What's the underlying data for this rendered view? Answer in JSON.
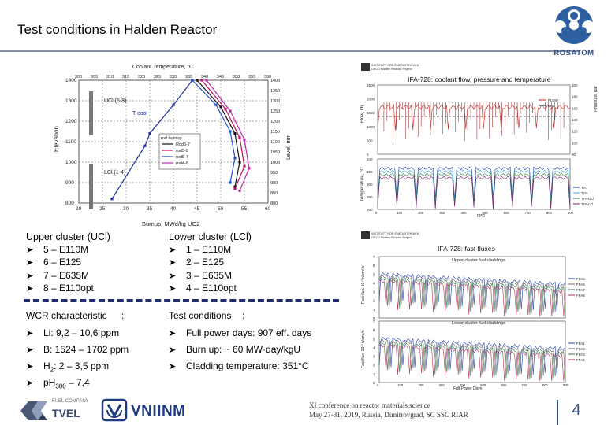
{
  "slide": {
    "title": "Test conditions in Halden Reactor",
    "page_number": "4"
  },
  "logos": {
    "rosatom": "ROSATOM",
    "tvel": "TVEL",
    "tvel_small": "FUEL COMPANY",
    "vniinm": "VNIINM"
  },
  "footer": {
    "line1": "XI conference on reactor materials science",
    "line2": "May 27-31, 2019, Russia, Dimitrovgrad, SC SSC RIAR"
  },
  "upper_cluster": {
    "heading": "Upper cluster (UCl)",
    "items": [
      "5 – E110M",
      "6 – E125",
      "7 – E635M",
      "8 – E110opt"
    ]
  },
  "lower_cluster": {
    "heading": "Lower cluster (LCl)",
    "items": [
      "1 – E110M",
      "2 – E125",
      "3 – E635M",
      "4 – E110opt"
    ]
  },
  "wcr": {
    "label": "WCR characteristic",
    "colon": ":",
    "li": "Li: 9,2 – 10,6 ppm",
    "b": "B: 1524 – 1702 ppm",
    "h2_prefix": "H",
    "h2_sub": "2",
    "h2_suffix": ": 2 – 3,5 ppm",
    "ph_prefix": "pH",
    "ph_sub": "300",
    "ph_suffix": " – 7,4"
  },
  "test_conditions": {
    "label": "Test conditions",
    "colon": ":",
    "items": [
      "Full power days: 907 eff. days",
      "Burn up: ~ 60 MW·day/kgU",
      "Cladding temperature: 351°C"
    ]
  },
  "colors": {
    "navy": "#1f2d6b",
    "accent": "#2d4f86"
  },
  "chart_data": [
    {
      "type": "line",
      "title": "Coolant Temperature, °C",
      "xlabel": "Burnup, MWd/kg UO2",
      "ylabel_left": "Elevation",
      "ylabel_right": "Level, mm",
      "xlim": [
        20,
        60
      ],
      "ylim": [
        800,
        1400
      ],
      "x_ticks": [
        "20",
        "25",
        "30",
        "35",
        "40",
        "45",
        "50",
        "55",
        "60"
      ],
      "y_ticks_left": [
        "800",
        "900",
        "1000",
        "1100",
        "1200",
        "1300",
        "1400"
      ],
      "y_ticks_right": [
        "800",
        "850",
        "900",
        "950",
        "1000",
        "1050",
        "1100",
        "1150",
        "1200",
        "1250",
        "1300",
        "1350",
        "1400"
      ],
      "top_ticks": [
        "300",
        "305",
        "310",
        "315",
        "320",
        "325",
        "330",
        "335",
        "340",
        "345",
        "350",
        "355",
        "360"
      ],
      "region_labels": [
        "UCl (5-8)",
        "LCl (1-4)"
      ],
      "tcool_label": "T cool",
      "legend_title": "rod burnup",
      "series": [
        {
          "name": "T cool",
          "color": "#2030a0",
          "points": [
            [
              27,
              820
            ],
            [
              34,
              1080
            ],
            [
              35,
              1140
            ],
            [
              40,
              1280
            ],
            [
              44,
              1400
            ]
          ]
        },
        {
          "name": "Rod5-7",
          "color": "#111111",
          "points": [
            [
              45,
              1400
            ],
            [
              50,
              1270
            ],
            [
              53,
              1140
            ],
            [
              54,
              1000
            ],
            [
              53,
              880
            ]
          ]
        },
        {
          "name": "rod5-8",
          "color": "#c01060",
          "points": [
            [
              46,
              1400
            ],
            [
              51,
              1260
            ],
            [
              54,
              1120
            ],
            [
              55,
              980
            ],
            [
              53,
              870
            ]
          ]
        },
        {
          "name": "rod5-7",
          "color": "#2050d0",
          "points": [
            [
              44,
              1400
            ],
            [
              49,
              1280
            ],
            [
              52,
              1150
            ],
            [
              53,
              1020
            ],
            [
              52,
              900
            ]
          ]
        },
        {
          "name": "rod4-8",
          "color": "#b030b0",
          "points": [
            [
              47,
              1400
            ],
            [
              52,
              1250
            ],
            [
              55,
              1110
            ],
            [
              56,
              970
            ],
            [
              54,
              860
            ]
          ]
        }
      ]
    },
    {
      "type": "line",
      "title": "IFA-728: coolant flow, pressure and temperature",
      "header": [
        "INSTITUTT FOR ENERGITEKNIKK",
        "OECD Halden Reactor Project"
      ],
      "top_ylabel": "Flow, l/h",
      "top_ylabel_right": "Pressure, bar",
      "bottom_ylabel": "Temperature, °C",
      "xlabel": "FPD",
      "top_left_ticks": [
        "0",
        "500",
        "1000",
        "1500",
        "2000",
        "2500"
      ],
      "top_right_ticks": [
        "80",
        "100",
        "120",
        "140",
        "160",
        "180",
        "200"
      ],
      "bottom_ticks": [
        "260",
        "280",
        "300",
        "320",
        "340"
      ],
      "x_ticks": [
        "0",
        "100",
        "200",
        "300",
        "400",
        "500",
        "600",
        "700",
        "800",
        "900"
      ],
      "top_legend": [
        "FLOW",
        "PR2"
      ],
      "bottom_legend": [
        "TIA",
        "TOA",
        "TFA-UCl",
        "TFA-LCl"
      ]
    },
    {
      "type": "line",
      "title": "IFA-728: fast fluxes",
      "header": [
        "INSTITUTT FOR ENERGITEKNIKK",
        "OECD Halden Reactor Project"
      ],
      "upper_label": "Upper cluster fuel claddings",
      "lower_label": "Lower cluster fuel claddings",
      "ylabel": "Fast flux, 10¹³ n/cm²/s",
      "xlabel": "Full Power Days",
      "upper_ticks": [
        "0",
        "1",
        "2",
        "3",
        "4",
        "5",
        "6",
        "7"
      ],
      "lower_ticks": [
        "0",
        "1",
        "2",
        "3",
        "4",
        "5",
        "6",
        "7"
      ],
      "x_ticks": [
        "0",
        "100",
        "200",
        "300",
        "400",
        "500",
        "600",
        "700",
        "800",
        "900"
      ],
      "upper_legend": [
        "FFA5",
        "FFA6",
        "FFA7",
        "FFA8"
      ],
      "lower_legend": [
        "FFA1",
        "FFA2",
        "FFA3",
        "FFA4"
      ]
    }
  ]
}
